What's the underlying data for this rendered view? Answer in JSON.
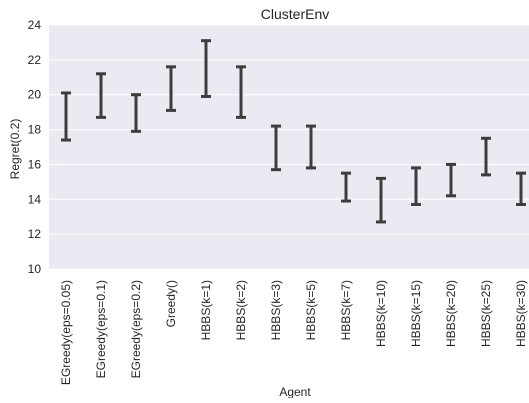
{
  "chart_data": {
    "type": "errorbar",
    "title": "ClusterEnv",
    "xlabel": "Agent",
    "ylabel": "Regret(0.2)",
    "ylim": [
      10,
      24
    ],
    "yticks": [
      10,
      12,
      14,
      16,
      18,
      20,
      22,
      24
    ],
    "grid": true,
    "background": "#eaeaf2",
    "bar_color": "#3d3d3d",
    "categories": [
      "EGreedy(eps=0.05)",
      "EGreedy(eps=0.1)",
      "EGreedy(eps=0.2)",
      "Greedy()",
      "HBBS(k=1)",
      "HBBS(k=2)",
      "HBBS(k=3)",
      "HBBS(k=5)",
      "HBBS(k=7)",
      "HBBS(k=10)",
      "HBBS(k=15)",
      "HBBS(k=20)",
      "HBBS(k=25)",
      "HBBS(k=30)"
    ],
    "lower": [
      17.4,
      18.7,
      17.9,
      19.1,
      19.9,
      18.7,
      15.7,
      15.8,
      13.9,
      12.7,
      13.7,
      14.2,
      15.4,
      13.7
    ],
    "upper": [
      20.1,
      21.2,
      20.0,
      21.6,
      23.1,
      21.6,
      18.2,
      18.2,
      15.5,
      15.2,
      15.8,
      16.0,
      17.5,
      15.5
    ]
  }
}
